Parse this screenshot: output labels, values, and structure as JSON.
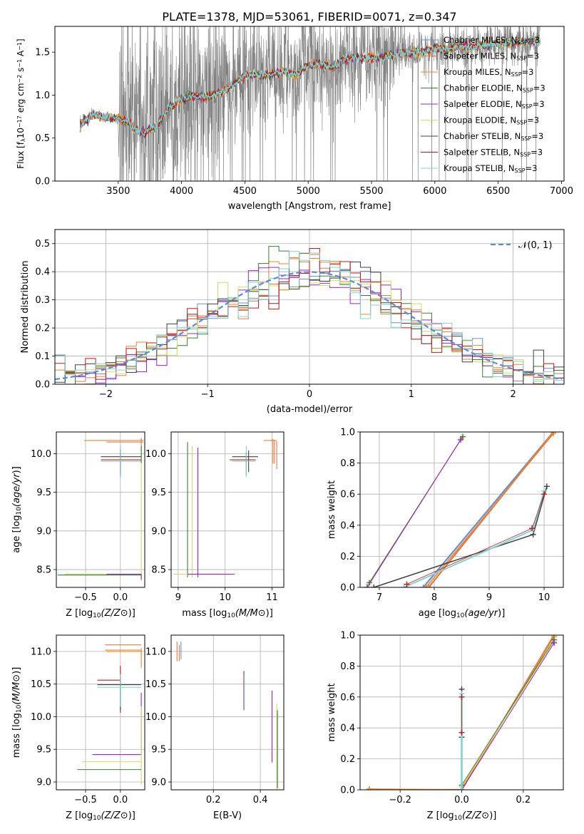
{
  "figure_title": "PLATE=1378, MJD=53061, FIBERID=0071, z=0.347",
  "colors": {
    "chabrier_miles": "#6a8fd0",
    "salpeter_miles": "#e07a4a",
    "kroupa_miles": "#e8862e",
    "chabrier_elodie": "#3b7d3b",
    "salpeter_elodie": "#a020c8",
    "kroupa_elodie": "#c8e060",
    "chabrier_stelib": "#404040",
    "salpeter_stelib": "#c01818",
    "kroupa_stelib": "#7fd3d3",
    "normal_curve": "#5b8bd6",
    "spectrum_data": "#808080",
    "grid": "#b0b0b0"
  },
  "chart_data": [
    {
      "id": "spectrum",
      "type": "line",
      "title": "",
      "xlabel": "wavelength [Angstrom, rest frame]",
      "ylabel": "Flux [f_λ 10^-17 erg cm^-2 s^-1 A^-1]",
      "xlim": [
        3000,
        7020
      ],
      "ylim": [
        0,
        1.8
      ],
      "xticks": [
        3500,
        4000,
        4500,
        5000,
        5500,
        6000,
        6500,
        7000
      ],
      "yticks": [
        0.0,
        0.5,
        1.0,
        1.5
      ],
      "grid": false,
      "legend_position": "top-right",
      "data_range": [
        3200,
        6830
      ],
      "continuum_knots": [
        [
          3200,
          0.65
        ],
        [
          3300,
          0.78
        ],
        [
          3400,
          0.74
        ],
        [
          3480,
          0.73
        ],
        [
          3600,
          0.68
        ],
        [
          3700,
          0.62
        ],
        [
          3800,
          0.69
        ],
        [
          3900,
          0.92
        ],
        [
          4000,
          0.95
        ],
        [
          4100,
          0.99
        ],
        [
          4200,
          0.98
        ],
        [
          4300,
          1.02
        ],
        [
          4400,
          1.12
        ],
        [
          4500,
          1.23
        ],
        [
          4600,
          1.23
        ],
        [
          4700,
          1.24
        ],
        [
          4800,
          1.28
        ],
        [
          4900,
          1.24
        ],
        [
          5000,
          1.35
        ],
        [
          5100,
          1.36
        ],
        [
          5200,
          1.32
        ],
        [
          5300,
          1.42
        ],
        [
          5400,
          1.43
        ],
        [
          5500,
          1.43
        ],
        [
          5600,
          1.45
        ],
        [
          5700,
          1.48
        ],
        [
          5800,
          1.49
        ],
        [
          5900,
          1.5
        ],
        [
          6000,
          1.55
        ],
        [
          6100,
          1.53
        ],
        [
          6200,
          1.57
        ],
        [
          6300,
          1.56
        ],
        [
          6400,
          1.58
        ],
        [
          6500,
          1.6
        ],
        [
          6600,
          1.61
        ],
        [
          6700,
          1.62
        ],
        [
          6830,
          1.64
        ]
      ],
      "series": [
        {
          "label_name": "Chabrier MILES",
          "label_n": "=3"
        },
        {
          "label_name": "Salpeter MILES",
          "label_n": "=3"
        },
        {
          "label_name": "Kroupa MILES",
          "label_n": "=3"
        },
        {
          "label_name": "Chabrier ELODIE",
          "label_n": "=3"
        },
        {
          "label_name": "Salpeter ELODIE",
          "label_n": "=3"
        },
        {
          "label_name": "Kroupa ELODIE",
          "label_n": "=3"
        },
        {
          "label_name": "Chabrier STELIB",
          "label_n": "=3"
        },
        {
          "label_name": "Salpeter STELIB",
          "label_n": "=3"
        },
        {
          "label_name": "Kroupa STELIB",
          "label_n": "=3"
        }
      ]
    },
    {
      "id": "residuals",
      "type": "line",
      "title": "",
      "xlabel": "(data-model)/error",
      "ylabel": "Normed distribution",
      "xlim": [
        -2.5,
        2.5
      ],
      "ylim": [
        0,
        0.55
      ],
      "xticks": [
        -2,
        -1,
        0,
        1,
        2
      ],
      "yticks": [
        0.0,
        0.1,
        0.2,
        0.3,
        0.4,
        0.5
      ],
      "grid": true,
      "legend_position": "top-right",
      "legend_label": "𝒩(0, 1)",
      "bin_width": 0.1,
      "bin_start": -2.5
    },
    {
      "id": "age_vs_Z",
      "type": "scatter",
      "xlabel": "Z [log10(Z/Z⊙)]",
      "ylabel": "age  [log10(age/yr)]",
      "xlim": [
        -0.92,
        0.35
      ],
      "ylim": [
        8.27,
        10.28
      ],
      "xticks": [
        -0.5,
        0.0
      ],
      "yticks": [
        8.5,
        9.0,
        9.5,
        10.0
      ],
      "grid": true
    },
    {
      "id": "age_vs_mass",
      "type": "scatter",
      "xlabel": "mass [log10(M/M⊙)]",
      "ylabel": "",
      "xlim": [
        8.85,
        11.25
      ],
      "ylim": [
        8.27,
        10.28
      ],
      "xticks": [
        9,
        10,
        11
      ],
      "yticks": [
        8.5,
        9.0,
        9.5,
        10.0
      ],
      "grid": true
    },
    {
      "id": "weight_vs_age",
      "type": "line",
      "xlabel": "age  [log10(age/yr)]",
      "ylabel": "mass weight",
      "xlim": [
        6.65,
        10.35
      ],
      "ylim": [
        0,
        1.0
      ],
      "xticks": [
        7,
        8,
        9,
        10
      ],
      "yticks": [
        0.0,
        0.2,
        0.4,
        0.6,
        0.8,
        1.0
      ],
      "grid": true
    },
    {
      "id": "mass_vs_Z",
      "type": "scatter",
      "xlabel": "Z [log10(Z/Z⊙)]",
      "ylabel": "mass [log10(M/M⊙)]",
      "xlim": [
        -0.92,
        0.35
      ],
      "ylim": [
        8.88,
        11.25
      ],
      "xticks": [
        -0.5,
        0.0
      ],
      "yticks": [
        9.0,
        9.5,
        10.0,
        10.5,
        11.0
      ],
      "grid": true
    },
    {
      "id": "mass_vs_ebv",
      "type": "scatter",
      "xlabel": "E(B-V)",
      "ylabel": "",
      "xlim": [
        0.02,
        0.5
      ],
      "ylim": [
        8.88,
        11.25
      ],
      "xticks": [
        0.2,
        0.4
      ],
      "yticks": [
        9.0,
        9.5,
        10.0,
        10.5,
        11.0
      ],
      "grid": true
    },
    {
      "id": "weight_vs_Z",
      "type": "line",
      "xlabel": "Z [log10(Z/Z⊙)]",
      "ylabel": "mass weight",
      "xlim": [
        -0.33,
        0.33
      ],
      "ylim": [
        0,
        1.0
      ],
      "xticks": [
        -0.2,
        0.0,
        0.2
      ],
      "yticks": [
        0.0,
        0.2,
        0.4,
        0.6,
        0.8,
        1.0
      ],
      "grid": true
    }
  ]
}
